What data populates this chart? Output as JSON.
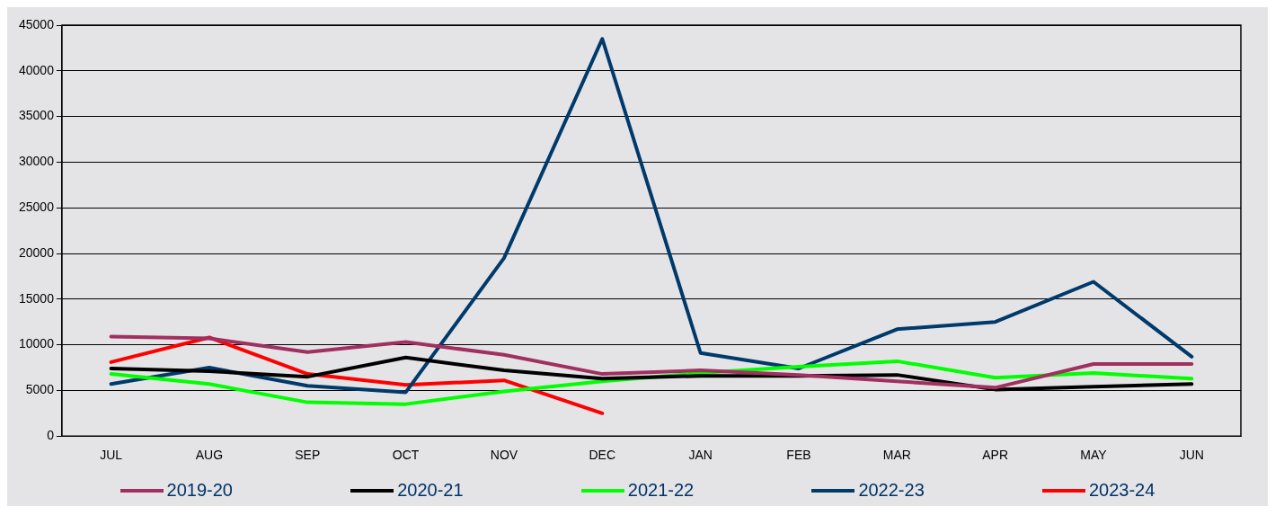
{
  "chart_data": {
    "type": "line",
    "categories": [
      "JUL",
      "AUG",
      "SEP",
      "OCT",
      "NOV",
      "DEC",
      "JAN",
      "FEB",
      "MAR",
      "APR",
      "MAY",
      "JUN"
    ],
    "series": [
      {
        "name": "2019-20",
        "color": "#a0305f",
        "values": [
          10900,
          10700,
          9200,
          10300,
          8900,
          6800,
          7200,
          6700,
          6000,
          5300,
          7900,
          7900
        ]
      },
      {
        "name": "2020-21",
        "color": "#000000",
        "values": [
          7400,
          7100,
          6500,
          8600,
          7200,
          6300,
          6600,
          6600,
          6700,
          5100,
          5400,
          5700
        ]
      },
      {
        "name": "2021-22",
        "color": "#00ff00",
        "values": [
          6800,
          5700,
          3700,
          3500,
          4900,
          6000,
          6900,
          7600,
          8200,
          6400,
          6900,
          6300
        ]
      },
      {
        "name": "2022-23",
        "color": "#003a6b",
        "values": [
          5700,
          7500,
          5500,
          4800,
          19500,
          43500,
          9100,
          7400,
          11700,
          12500,
          16900,
          8700
        ]
      },
      {
        "name": "2023-24",
        "color": "#ff0000",
        "values": [
          8100,
          10800,
          6800,
          5600,
          6100,
          2500,
          null,
          null,
          null,
          null,
          null,
          null
        ]
      }
    ],
    "ylim": [
      0,
      45000
    ],
    "yticks": [
      0,
      5000,
      10000,
      15000,
      20000,
      25000,
      30000,
      35000,
      40000,
      45000
    ],
    "grid": "y",
    "legend": "bottom",
    "marker": "none",
    "line_style": "solid"
  }
}
